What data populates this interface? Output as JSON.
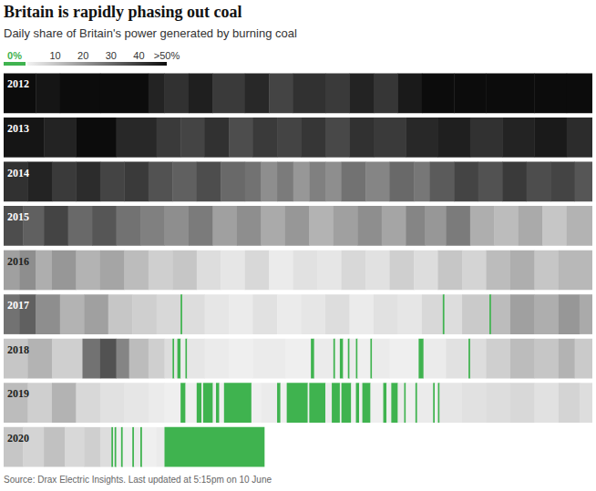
{
  "chart_data": {
    "type": "heatmap",
    "title": "Britain is rapidly phasing out coal",
    "subtitle": "Daily share of Britain's power generated by burning coal",
    "source": "Source: Drax Electric Insights. Last updated at 5:15pm on 10 June",
    "color": "#3fb34f",
    "xlim": [
      0,
      366
    ],
    "tick_labels": false,
    "colorbar": {
      "range": [
        0,
        50
      ],
      "ticks": [
        {
          "value": 0,
          "label": "0%"
        },
        10,
        20,
        30,
        40,
        {
          "value": 50,
          "label": ">50%"
        }
      ]
    },
    "series": [
      {
        "name": "2012",
        "x_end": 366,
        "x": [
          0,
          20,
          35,
          60,
          90,
          100,
          115,
          130,
          150,
          165,
          180,
          200,
          215,
          230,
          245,
          260,
          280,
          300,
          330,
          350
        ],
        "values": [
          52,
          48,
          55,
          50,
          45,
          42,
          46,
          40,
          44,
          38,
          42,
          40,
          45,
          41,
          47,
          50,
          55,
          52,
          56,
          50
        ]
      },
      {
        "name": "2013",
        "x_end": 366,
        "x": [
          0,
          25,
          45,
          70,
          95,
          110,
          125,
          140,
          155,
          170,
          185,
          200,
          215,
          230,
          250,
          270,
          290,
          310,
          330,
          350
        ],
        "values": [
          48,
          45,
          50,
          44,
          40,
          38,
          42,
          36,
          40,
          38,
          41,
          37,
          42,
          40,
          44,
          46,
          42,
          45,
          47,
          43
        ]
      },
      {
        "name": "2014",
        "x_end": 366,
        "x": [
          0,
          15,
          30,
          45,
          60,
          75,
          90,
          105,
          120,
          135,
          150,
          160,
          170,
          180,
          190,
          200,
          210,
          225,
          240,
          255,
          265,
          280,
          295,
          310,
          325,
          340,
          355
        ],
        "values": [
          42,
          45,
          40,
          43,
          38,
          40,
          35,
          32,
          36,
          30,
          28,
          22,
          26,
          20,
          25,
          22,
          28,
          24,
          30,
          27,
          33,
          38,
          35,
          40,
          36,
          38,
          34
        ]
      },
      {
        "name": "2015",
        "x_end": 366,
        "x": [
          0,
          12,
          25,
          40,
          55,
          70,
          85,
          100,
          115,
          130,
          145,
          160,
          175,
          190,
          205,
          220,
          235,
          250,
          262,
          275,
          290,
          305,
          320,
          335,
          350
        ],
        "values": [
          36,
          32,
          38,
          30,
          34,
          28,
          25,
          22,
          26,
          18,
          22,
          16,
          20,
          14,
          18,
          22,
          17,
          24,
          20,
          26,
          15,
          12,
          16,
          10,
          14
        ]
      },
      {
        "name": "2016",
        "x_end": 366,
        "x": [
          0,
          10,
          20,
          30,
          45,
          60,
          75,
          90,
          105,
          120,
          135,
          150,
          165,
          180,
          195,
          210,
          225,
          240,
          255,
          270,
          285,
          300,
          315,
          330,
          345
        ],
        "values": [
          18,
          22,
          15,
          20,
          14,
          17,
          12,
          8,
          10,
          5,
          3,
          6,
          2,
          4,
          3,
          6,
          4,
          8,
          5,
          10,
          7,
          12,
          15,
          10,
          13
        ]
      },
      {
        "name": "2017",
        "x_end": 366,
        "x": [
          0,
          10,
          20,
          35,
          50,
          65,
          80,
          95,
          110,
          111,
          125,
          140,
          155,
          170,
          185,
          200,
          215,
          230,
          245,
          260,
          273,
          274,
          285,
          302,
          303,
          315,
          330,
          345,
          358
        ],
        "values": [
          28,
          32,
          22,
          14,
          18,
          10,
          8,
          6,
          0,
          5,
          3,
          2,
          4,
          2,
          3,
          5,
          2,
          4,
          3,
          6,
          0,
          5,
          9,
          0,
          12,
          18,
          15,
          20,
          16
        ]
      },
      {
        "name": "2018",
        "x_end": 366,
        "x": [
          0,
          15,
          30,
          49,
          60,
          70,
          78,
          90,
          100,
          105,
          106,
          108,
          110,
          113,
          114,
          125,
          140,
          155,
          175,
          191,
          193,
          205,
          206,
          209,
          211,
          214,
          215,
          219,
          220,
          228,
          229,
          240,
          258,
          261,
          275,
          289,
          290,
          300,
          315,
          330,
          345,
          355
        ],
        "values": [
          10,
          14,
          8,
          28,
          35,
          24,
          12,
          8,
          5,
          0,
          3,
          0,
          2,
          0,
          3,
          2,
          1,
          2,
          1,
          0,
          2,
          0,
          1,
          0,
          1,
          0,
          2,
          0,
          1,
          0,
          2,
          1,
          0,
          2,
          4,
          0,
          5,
          8,
          12,
          10,
          14,
          9
        ]
      },
      {
        "name": "2019",
        "x_end": 366,
        "x": [
          0,
          15,
          30,
          45,
          60,
          75,
          90,
          100,
          110,
          113,
          120,
          123,
          124,
          130,
          132,
          134,
          137,
          154,
          160,
          170,
          172,
          176,
          189,
          190,
          200,
          204,
          209,
          210,
          216,
          219,
          221,
          223,
          228,
          236,
          238,
          241,
          245,
          249,
          250,
          256,
          257,
          267,
          268,
          270,
          271,
          285,
          300,
          315,
          330,
          345,
          358
        ],
        "values": [
          12,
          8,
          14,
          6,
          4,
          3,
          2,
          1,
          0,
          1,
          0,
          1,
          0,
          2,
          0,
          1,
          0,
          1,
          2,
          0,
          1,
          0,
          1,
          0,
          2,
          0,
          1,
          0,
          1,
          0,
          1,
          0,
          1,
          0,
          1,
          0,
          2,
          0,
          1,
          0,
          2,
          0,
          1,
          0,
          3,
          4,
          5,
          6,
          4,
          7,
          5
        ]
      },
      {
        "name": "2020",
        "x_end": 162,
        "x": [
          0,
          12,
          25,
          38,
          50,
          60,
          67,
          68,
          69,
          70,
          73,
          74,
          80,
          81,
          85,
          86,
          95,
          100
        ],
        "values": [
          10,
          7,
          11,
          6,
          8,
          5,
          0,
          2,
          0,
          1,
          0,
          1,
          0,
          2,
          0,
          1,
          2,
          0
        ]
      }
    ]
  }
}
